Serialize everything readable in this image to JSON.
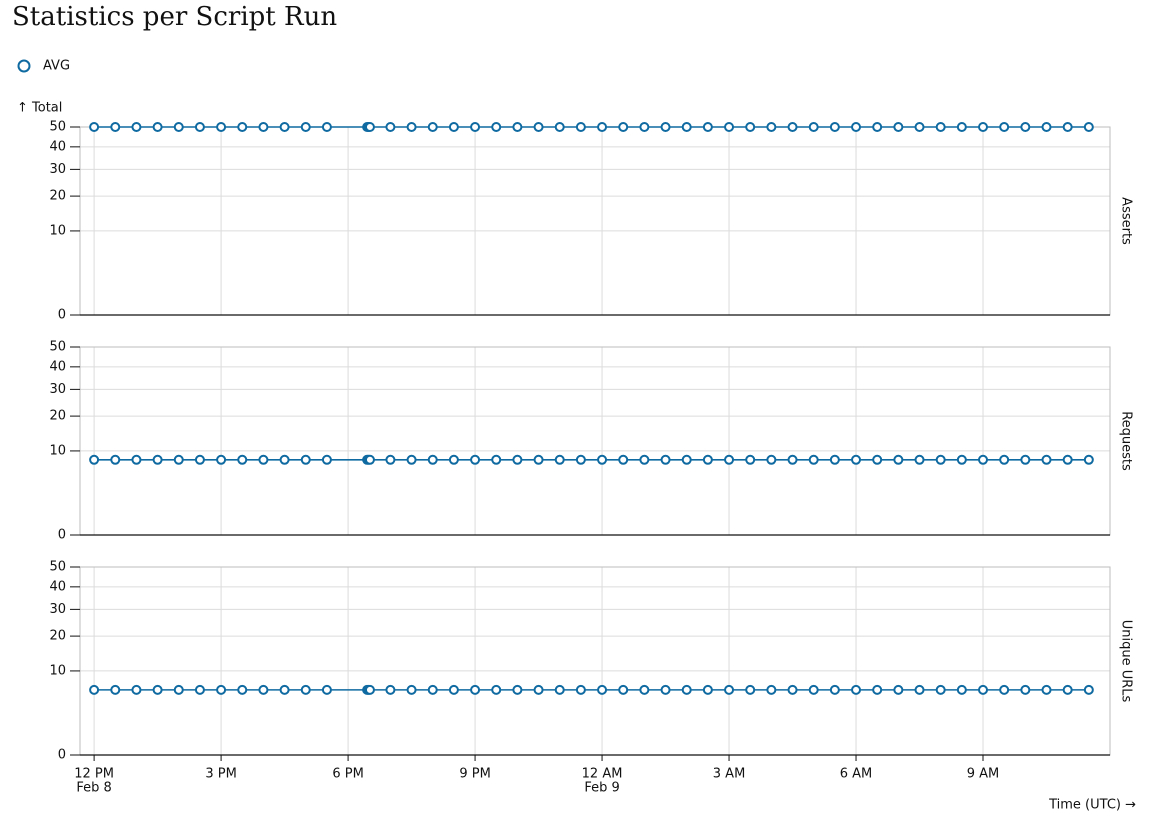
{
  "chart_data": {
    "type": "line",
    "title": "Statistics per Script Run",
    "y_label": "↑ Total",
    "x_label": "Time (UTC) →",
    "y_scale": "sqrt",
    "grid": true,
    "ylim": [
      0,
      50
    ],
    "yticks": [
      0,
      10,
      20,
      30,
      40,
      50
    ],
    "xlim": [
      "Feb 8 11:40",
      "Feb 9 12:00"
    ],
    "xticks": [
      {
        "value": "Feb 8 12:00",
        "label": [
          "12 PM",
          "Feb 8"
        ]
      },
      {
        "value": "Feb 8 15:00",
        "label": [
          "3 PM"
        ]
      },
      {
        "value": "Feb 8 18:00",
        "label": [
          "6 PM"
        ]
      },
      {
        "value": "Feb 8 21:00",
        "label": [
          "9 PM"
        ]
      },
      {
        "value": "Feb 9 00:00",
        "label": [
          "12 AM",
          "Feb 9"
        ]
      },
      {
        "value": "Feb 9 03:00",
        "label": [
          "3 AM"
        ]
      },
      {
        "value": "Feb 9 06:00",
        "label": [
          "6 AM"
        ]
      },
      {
        "value": "Feb 9 09:00",
        "label": [
          "9 AM"
        ]
      }
    ],
    "x": [
      "Feb 8 12:00",
      "Feb 8 12:30",
      "Feb 8 13:00",
      "Feb 8 13:30",
      "Feb 8 14:00",
      "Feb 8 14:30",
      "Feb 8 15:00",
      "Feb 8 15:30",
      "Feb 8 16:00",
      "Feb 8 16:30",
      "Feb 8 17:00",
      "Feb 8 17:30",
      "Feb 8 18:27",
      "Feb 8 18:29",
      "Feb 8 18:31",
      "Feb 8 19:00",
      "Feb 8 19:30",
      "Feb 8 20:00",
      "Feb 8 20:30",
      "Feb 8 21:00",
      "Feb 8 21:30",
      "Feb 8 22:00",
      "Feb 8 22:30",
      "Feb 8 23:00",
      "Feb 8 23:30",
      "Feb 9 00:00",
      "Feb 9 00:30",
      "Feb 9 01:00",
      "Feb 9 01:30",
      "Feb 9 02:00",
      "Feb 9 02:30",
      "Feb 9 03:00",
      "Feb 9 03:30",
      "Feb 9 04:00",
      "Feb 9 04:30",
      "Feb 9 05:00",
      "Feb 9 05:30",
      "Feb 9 06:00",
      "Feb 9 06:30",
      "Feb 9 07:00",
      "Feb 9 07:30",
      "Feb 9 08:00",
      "Feb 9 08:30",
      "Feb 9 09:00",
      "Feb 9 09:30",
      "Feb 9 10:00",
      "Feb 9 10:30",
      "Feb 9 11:00",
      "Feb 9 11:30"
    ],
    "facets": [
      {
        "name": "Asserts",
        "series": [
          {
            "name": "AVG",
            "color": "#0f6aa1",
            "values": [
              50,
              50,
              50,
              50,
              50,
              50,
              50,
              50,
              50,
              50,
              50,
              50,
              50,
              50,
              50,
              50,
              50,
              50,
              50,
              50,
              50,
              50,
              50,
              50,
              50,
              50,
              50,
              50,
              50,
              50,
              50,
              50,
              50,
              50,
              50,
              50,
              50,
              50,
              50,
              50,
              50,
              50,
              50,
              50,
              50,
              50,
              50,
              50,
              50
            ]
          }
        ]
      },
      {
        "name": "Requests",
        "series": [
          {
            "name": "AVG",
            "color": "#0f6aa1",
            "values": [
              8,
              8,
              8,
              8,
              8,
              8,
              8,
              8,
              8,
              8,
              8,
              8,
              8,
              8,
              8,
              8,
              8,
              8,
              8,
              8,
              8,
              8,
              8,
              8,
              8,
              8,
              8,
              8,
              8,
              8,
              8,
              8,
              8,
              8,
              8,
              8,
              8,
              8,
              8,
              8,
              8,
              8,
              8,
              8,
              8,
              8,
              8,
              8,
              8
            ]
          }
        ]
      },
      {
        "name": "Unique URLs",
        "series": [
          {
            "name": "AVG",
            "color": "#0f6aa1",
            "values": [
              6,
              6,
              6,
              6,
              6,
              6,
              6,
              6,
              6,
              6,
              6,
              6,
              6,
              6,
              6,
              6,
              6,
              6,
              6,
              6,
              6,
              6,
              6,
              6,
              6,
              6,
              6,
              6,
              6,
              6,
              6,
              6,
              6,
              6,
              6,
              6,
              6,
              6,
              6,
              6,
              6,
              6,
              6,
              6,
              6,
              6,
              6,
              6,
              6
            ]
          }
        ]
      }
    ]
  }
}
